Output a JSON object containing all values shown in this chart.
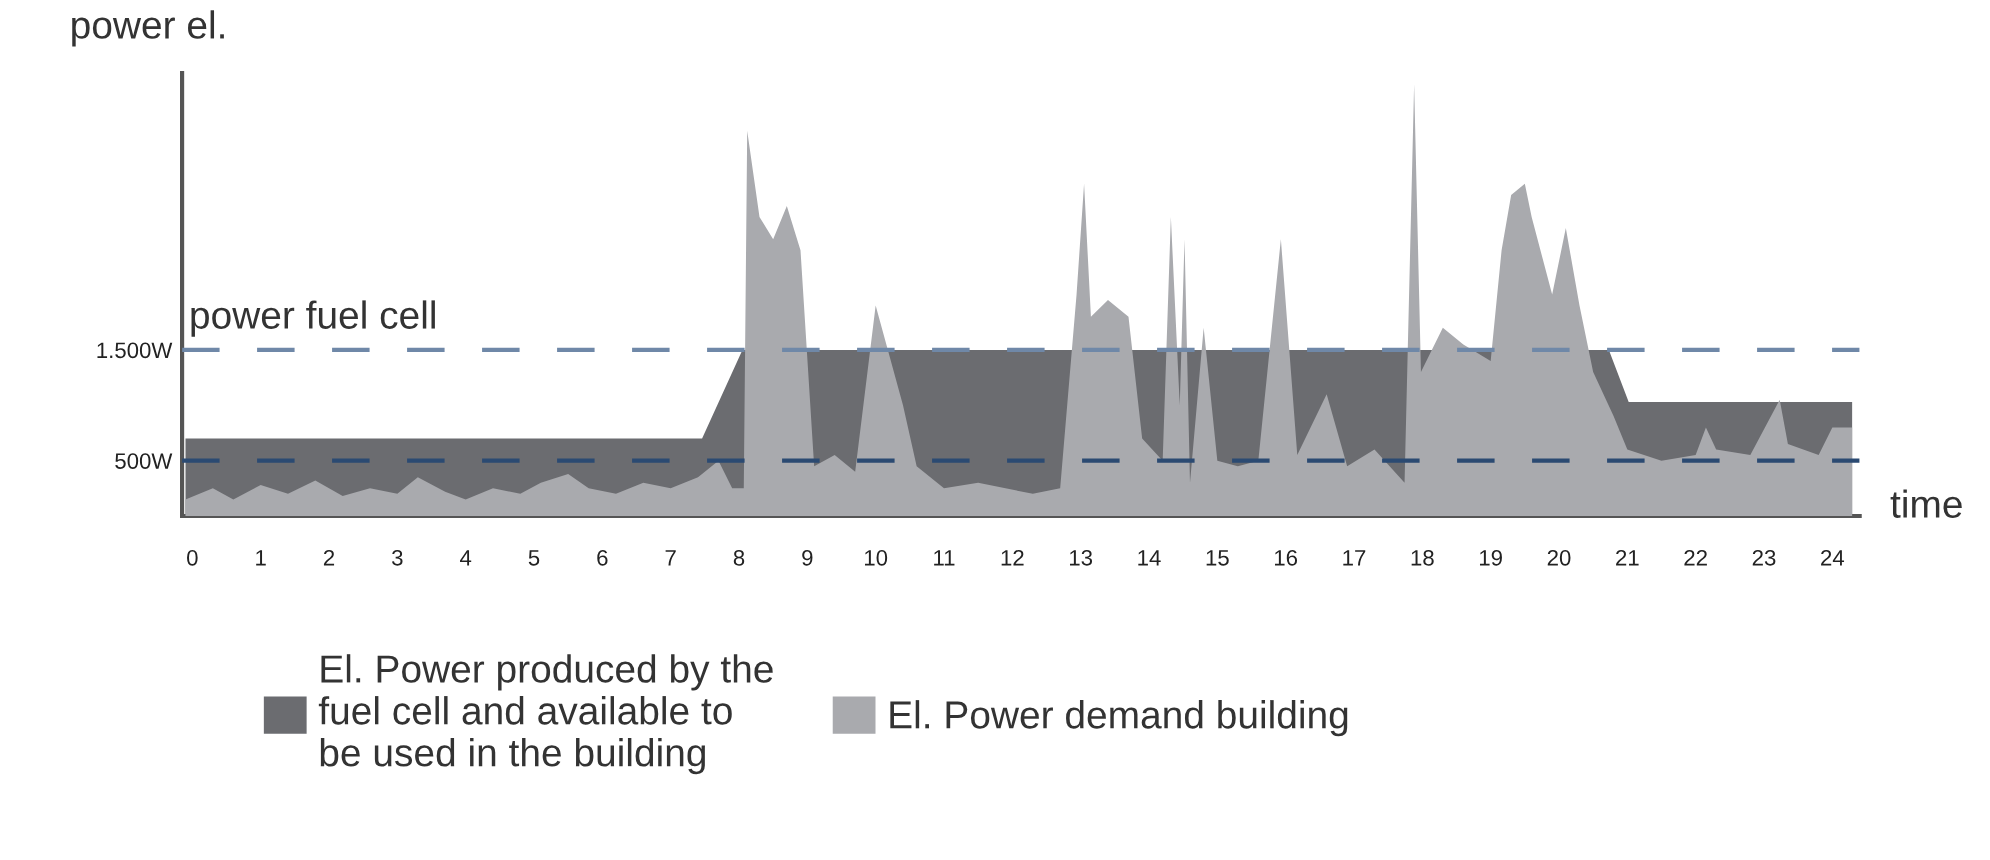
{
  "chart_data": {
    "type": "area",
    "xlabel": "time",
    "ylabel": "power el.",
    "xlim": [
      -0.15,
      24.4
    ],
    "ylim": [
      0,
      4000
    ],
    "xticks": [
      0,
      1,
      2,
      3,
      4,
      5,
      6,
      7,
      8,
      9,
      10,
      11,
      12,
      13,
      14,
      15,
      16,
      17,
      18,
      19,
      20,
      21,
      22,
      23,
      24
    ],
    "yticks": [
      {
        "value": 500,
        "label": "500W"
      },
      {
        "value": 1500,
        "label": "1.500W"
      }
    ],
    "grid": false,
    "legend": "bottom",
    "ref_lines": [
      {
        "axis": "y",
        "value": 1500,
        "label": "power fuel cell",
        "color": "#6f88a8",
        "line_style": "dashed"
      },
      {
        "axis": "y",
        "value": 500,
        "label": null,
        "color": "#2b4a72",
        "line_style": "dashed"
      }
    ],
    "series": [
      {
        "name": "El. Power produced by the\nfuel cell and available to\nbe used in the building",
        "color": "#6b6c70",
        "x": [
          -0.1,
          7.46,
          8.05,
          20.73,
          21.02,
          24.29
        ],
        "values": [
          700,
          700,
          1500,
          1500,
          1030,
          1030
        ]
      },
      {
        "name": "El. Power demand building",
        "color": "#a9aaae",
        "x": [
          -0.1,
          0.3,
          0.6,
          1.0,
          1.4,
          1.8,
          2.2,
          2.6,
          3.0,
          3.3,
          3.7,
          4.0,
          4.4,
          4.8,
          5.1,
          5.5,
          5.8,
          6.2,
          6.6,
          7.0,
          7.4,
          7.7,
          7.9,
          8.07,
          8.12,
          8.3,
          8.5,
          8.7,
          8.9,
          9.1,
          9.4,
          9.7,
          10.0,
          10.4,
          10.6,
          11.0,
          11.5,
          11.9,
          12.3,
          12.7,
          12.94,
          13.05,
          13.15,
          13.4,
          13.7,
          13.9,
          14.2,
          14.32,
          14.45,
          14.52,
          14.6,
          14.8,
          15.0,
          15.3,
          15.6,
          15.93,
          16.17,
          16.6,
          16.9,
          17.3,
          17.74,
          17.88,
          17.98,
          18.3,
          18.6,
          19.0,
          19.16,
          19.3,
          19.5,
          19.6,
          19.9,
          20.1,
          20.3,
          20.5,
          20.8,
          21.0,
          21.5,
          22.0,
          22.15,
          22.3,
          22.8,
          23.23,
          23.35,
          23.8,
          24.0,
          24.29
        ],
        "values": [
          150,
          250,
          150,
          280,
          200,
          320,
          180,
          250,
          200,
          350,
          220,
          150,
          250,
          200,
          300,
          380,
          250,
          200,
          300,
          250,
          350,
          500,
          250,
          250,
          3480,
          2700,
          2500,
          2800,
          2400,
          450,
          550,
          400,
          1900,
          1000,
          450,
          250,
          300,
          250,
          200,
          250,
          2000,
          3000,
          1800,
          1950,
          1800,
          700,
          500,
          2700,
          1000,
          2500,
          300,
          1700,
          500,
          450,
          500,
          2500,
          550,
          1100,
          450,
          600,
          300,
          3900,
          1300,
          1700,
          1550,
          1400,
          2400,
          2900,
          3000,
          2700,
          2000,
          2600,
          1900,
          1300,
          900,
          600,
          500,
          550,
          800,
          600,
          550,
          1050,
          650,
          550,
          800,
          800
        ]
      }
    ]
  }
}
